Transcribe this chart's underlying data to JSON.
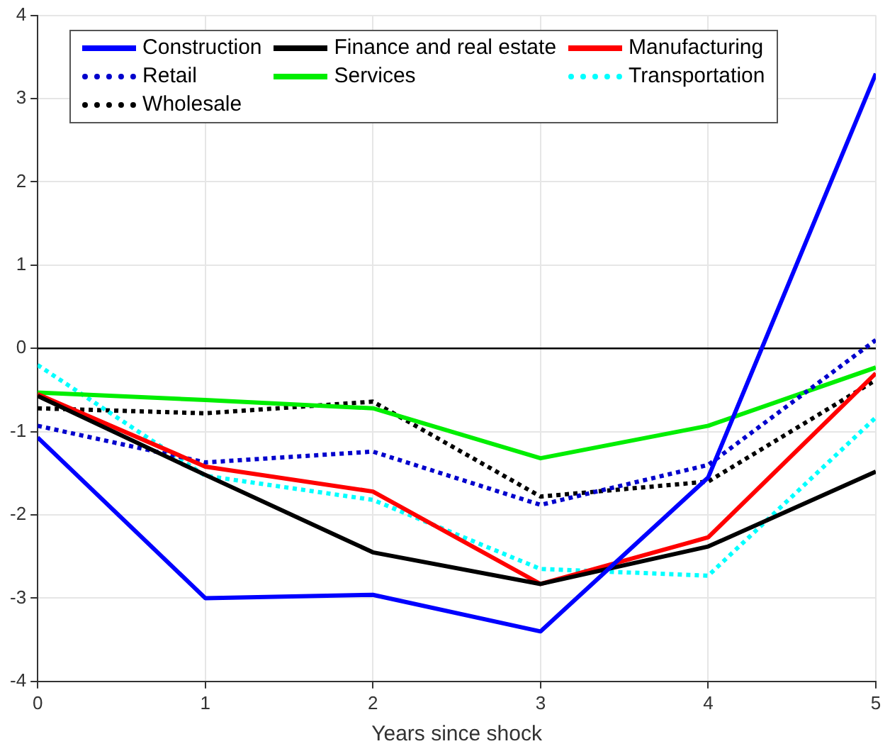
{
  "chart_data": {
    "type": "line",
    "xlabel": "Years since shock",
    "x": [
      0,
      1,
      2,
      3,
      4,
      5
    ],
    "series": [
      {
        "name": "Construction",
        "color": "#0000ff",
        "line_style": "solid",
        "values": [
          -1.07,
          -3.0,
          -2.96,
          -3.4,
          -1.55,
          3.3
        ]
      },
      {
        "name": "Finance and real estate",
        "color": "#000000",
        "line_style": "solid",
        "values": [
          -0.57,
          -1.52,
          -2.45,
          -2.83,
          -2.38,
          -1.48
        ]
      },
      {
        "name": "Manufacturing",
        "color": "#ff0000",
        "line_style": "solid",
        "values": [
          -0.55,
          -1.42,
          -1.72,
          -2.83,
          -2.27,
          -0.3
        ]
      },
      {
        "name": "Retail",
        "color": "#0000cc",
        "line_style": "dotted",
        "values": [
          -0.93,
          -1.37,
          -1.24,
          -1.88,
          -1.4,
          0.1
        ]
      },
      {
        "name": "Services",
        "color": "#00ee00",
        "line_style": "solid",
        "values": [
          -0.53,
          -0.62,
          -0.72,
          -1.32,
          -0.93,
          -0.23
        ]
      },
      {
        "name": "Transportation",
        "color": "#00ffff",
        "line_style": "dotted",
        "values": [
          -0.2,
          -1.53,
          -1.82,
          -2.65,
          -2.73,
          -0.83
        ]
      },
      {
        "name": "Wholesale",
        "color": "#000000",
        "line_style": "dotted",
        "values": [
          -0.72,
          -0.78,
          -0.64,
          -1.78,
          -1.6,
          -0.38
        ]
      }
    ],
    "xlim": [
      0,
      5
    ],
    "xticks": [
      0,
      1,
      2,
      3,
      4,
      5
    ],
    "ylim": [
      -4,
      4
    ],
    "yticks": [
      -4,
      -3,
      -2,
      -1,
      0,
      1,
      2,
      3,
      4
    ],
    "ref_lines": [
      {
        "axis": "y",
        "value": 0,
        "color": "#000000"
      }
    ],
    "grid": true,
    "legend": "top",
    "marker": "none"
  }
}
